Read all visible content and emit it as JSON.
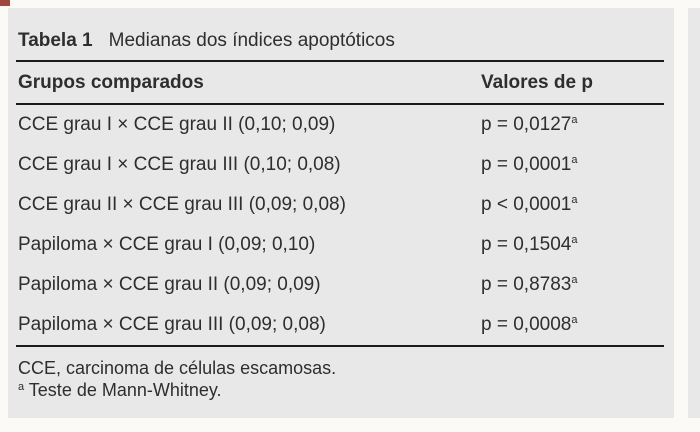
{
  "colors": {
    "page_background": "#fbfaf7",
    "panel_background": "#e8e8e8",
    "text": "#2e2e2e",
    "rule": "#1b1b1b",
    "corner_mark": "#a2453c"
  },
  "table": {
    "title": {
      "label": "Tabela 1",
      "text": "Medianas dos índices apoptóticos"
    },
    "header": {
      "col1": "Grupos comparados",
      "col2": "Valores de p"
    },
    "rows": [
      {
        "group": "CCE grau I × CCE grau II (0,10; 0,09)",
        "p": "p = 0,0127",
        "sup": "a"
      },
      {
        "group": "CCE grau I × CCE grau III (0,10; 0,08)",
        "p": "p = 0,0001",
        "sup": "a"
      },
      {
        "group": "CCE grau II × CCE grau III (0,09; 0,08)",
        "p": "p < 0,0001",
        "sup": "a"
      },
      {
        "group": "Papiloma × CCE grau I (0,09; 0,10)",
        "p": "p = 0,1504",
        "sup": "a"
      },
      {
        "group": "Papiloma × CCE grau II (0,09; 0,09)",
        "p": "p = 0,8783",
        "sup": "a"
      },
      {
        "group": "Papiloma × CCE grau III (0,09; 0,08)",
        "p": "p = 0,0008",
        "sup": "a"
      }
    ],
    "footnotes": [
      {
        "sup": "",
        "text": "CCE, carcinoma de células escamosas."
      },
      {
        "sup": "a",
        "text": " Teste de Mann-Whitney."
      }
    ]
  }
}
